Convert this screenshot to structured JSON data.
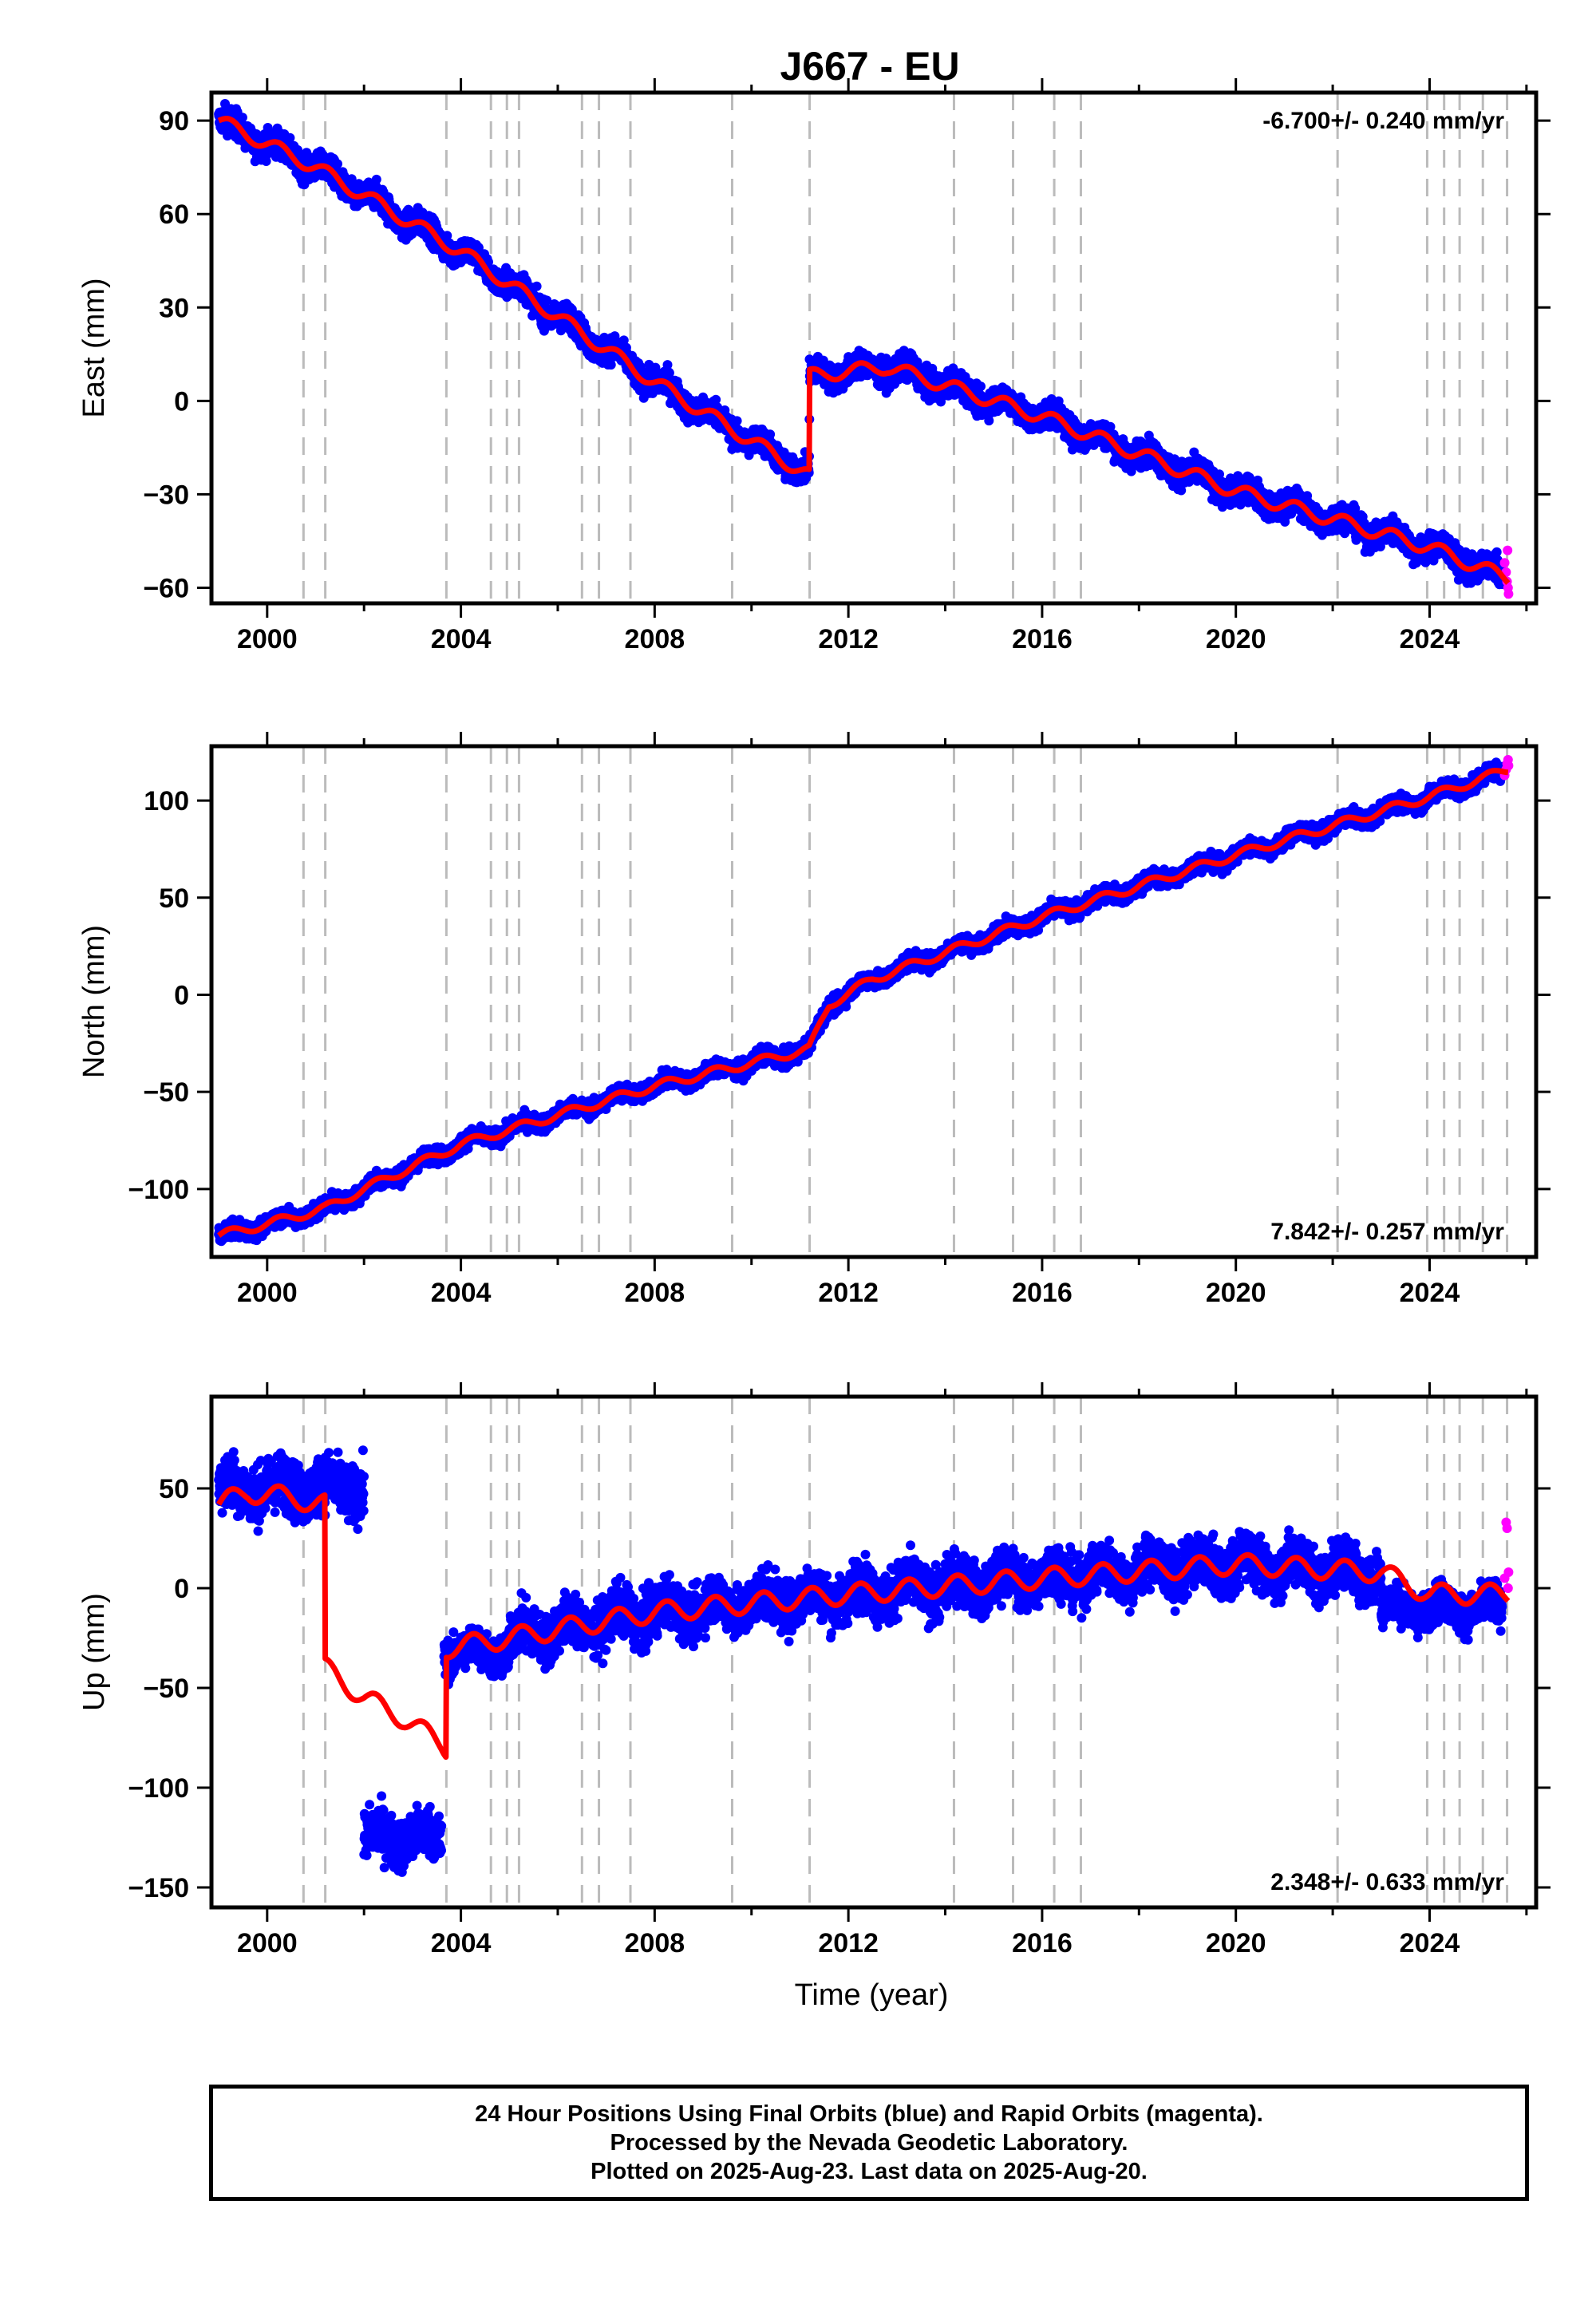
{
  "title": "J667 - EU",
  "x_axis_label": "Time (year)",
  "chart_data": [
    {
      "type": "scatter",
      "name": "East",
      "ylabel": "East (mm)",
      "rate_label": "-6.700+/- 0.240 mm/yr",
      "rate_position": "top-right",
      "xlim": [
        1998.85,
        2026.2
      ],
      "ylim": [
        -65,
        99
      ],
      "xticks": [
        2000,
        2004,
        2008,
        2012,
        2016,
        2020,
        2024
      ],
      "yticks": [
        -60,
        -30,
        0,
        30,
        60,
        90
      ],
      "grid": false,
      "rate": -6.7,
      "offsets": [
        [
          2011.19,
          34
        ]
      ],
      "model": [
        [
          1999.0,
          90
        ],
        [
          2001.0,
          75
        ],
        [
          2004.0,
          48
        ],
        [
          2008.0,
          6
        ],
        [
          2011.19,
          -24
        ],
        [
          2011.2,
          8
        ],
        [
          2012.8,
          11
        ],
        [
          2016.0,
          -5
        ],
        [
          2020.0,
          -29
        ],
        [
          2024.0,
          -47
        ],
        [
          2025.62,
          -57
        ]
      ],
      "scatter_spread": 3.0,
      "rapid_points": [
        [
          2025.55,
          -52
        ],
        [
          2025.58,
          -55
        ],
        [
          2025.6,
          -58
        ],
        [
          2025.62,
          -60
        ],
        [
          2025.63,
          -62
        ],
        [
          2025.61,
          -48
        ]
      ],
      "rapid_start": 2025.5
    },
    {
      "type": "scatter",
      "name": "North",
      "ylabel": "North (mm)",
      "rate_label": "7.842+/- 0.257 mm/yr",
      "rate_position": "bottom-right",
      "xlim": [
        1998.85,
        2026.2
      ],
      "ylim": [
        -135,
        128
      ],
      "xticks": [
        2000,
        2004,
        2008,
        2012,
        2016,
        2020,
        2024
      ],
      "yticks": [
        -100,
        -50,
        0,
        50,
        100
      ],
      "grid": false,
      "rate": 7.842,
      "model": [
        [
          1999.0,
          -124
        ],
        [
          2000.0,
          -118
        ],
        [
          2001.2,
          -110
        ],
        [
          2002.0,
          -100
        ],
        [
          2004.0,
          -77
        ],
        [
          2008.0,
          -47
        ],
        [
          2011.19,
          -28
        ],
        [
          2011.6,
          -5
        ],
        [
          2012.5,
          8
        ],
        [
          2016.0,
          40
        ],
        [
          2020.0,
          72
        ],
        [
          2024.0,
          102
        ],
        [
          2025.62,
          116
        ]
      ],
      "scatter_spread": 3.0,
      "rapid_points": [
        [
          2025.55,
          113
        ],
        [
          2025.58,
          116
        ],
        [
          2025.6,
          119
        ],
        [
          2025.62,
          121
        ],
        [
          2025.63,
          118
        ]
      ],
      "rapid_start": 2025.5
    },
    {
      "type": "scatter",
      "name": "Up",
      "ylabel": "Up (mm)",
      "rate_label": "2.348+/- 0.633 mm/yr",
      "rate_position": "bottom-right",
      "xlim": [
        1998.85,
        2026.2
      ],
      "ylim": [
        -160,
        96
      ],
      "xticks": [
        2000,
        2004,
        2008,
        2012,
        2016,
        2020,
        2024
      ],
      "yticks": [
        -150,
        -100,
        -50,
        0,
        50
      ],
      "grid": false,
      "rate": 2.348,
      "model": [
        [
          1999.0,
          42
        ],
        [
          1999.6,
          48
        ],
        [
          2000.3,
          46
        ],
        [
          2001.19,
          42
        ],
        [
          2001.2,
          -40
        ],
        [
          2002.0,
          -55
        ],
        [
          2002.8,
          -65
        ],
        [
          2003.6,
          -78
        ],
        [
          2003.69,
          -80
        ],
        [
          2003.7,
          -30
        ],
        [
          2005.0,
          -25
        ],
        [
          2008.0,
          -12
        ],
        [
          2012.0,
          -3
        ],
        [
          2016.0,
          5
        ],
        [
          2020.0,
          12
        ],
        [
          2023.0,
          8
        ],
        [
          2024.0,
          -3
        ],
        [
          2025.62,
          -3
        ]
      ],
      "data_segments": [
        {
          "start": 1999.0,
          "end": 2002.0,
          "center": 50,
          "spread": 10
        },
        {
          "start": 2002.0,
          "end": 2003.6,
          "center": -125,
          "spread": 9
        },
        {
          "start": 2003.65,
          "end": 2005.0,
          "center": -32,
          "spread": 7
        },
        {
          "start": 2005.0,
          "end": 2023.0,
          "center": null,
          "spread": 9
        },
        {
          "start": 2023.0,
          "end": 2025.5,
          "center": -10,
          "spread": 7
        }
      ],
      "rapid_points": [
        [
          2025.55,
          5
        ],
        [
          2025.58,
          33
        ],
        [
          2025.6,
          30
        ],
        [
          2025.62,
          0
        ],
        [
          2025.63,
          8
        ]
      ],
      "rapid_start": 2025.5
    }
  ],
  "event_lines": [
    2000.75,
    2001.2,
    2003.7,
    2004.62,
    2004.95,
    2005.2,
    2006.5,
    2006.85,
    2007.5,
    2009.6,
    2011.2,
    2014.18,
    2015.4,
    2016.25,
    2016.8,
    2022.1,
    2023.95,
    2024.3,
    2024.62,
    2025.1,
    2025.6
  ],
  "colors": {
    "final_orbits": "#0000ff",
    "rapid_orbits": "#ff00ff",
    "model": "#ff0000",
    "event_lines": "#bbbbbb",
    "frame": "#000000"
  },
  "footer": {
    "line1": "24 Hour Positions Using Final Orbits (blue) and Rapid Orbits (magenta).",
    "line2": "Processed by the Nevada Geodetic Laboratory.",
    "line3": "Plotted on 2025-Aug-23. Last data on 2025-Aug-20."
  }
}
